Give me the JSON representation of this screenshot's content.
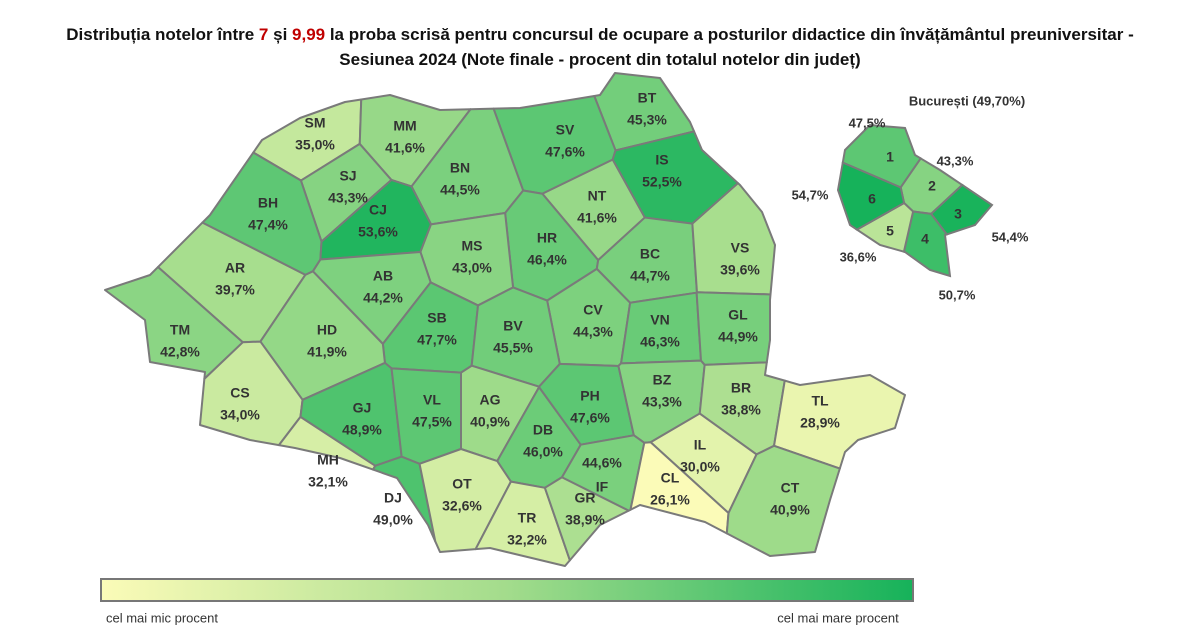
{
  "header": {
    "title_a": "Distribuția notelor între ",
    "title_n1": "7",
    "title_b": " și ",
    "title_n2": "9,99",
    "title_c": " la proba scrisă pentru concursul de ocupare a posturilor didactice din învățământul preuniversitar -",
    "title_line2": "Sesiunea 2024 (Note finale - procent din totalul notelor din județ)"
  },
  "counties": [
    {
      "code": "SM",
      "value": 35.0,
      "value_label": "35,0%"
    },
    {
      "code": "MM",
      "value": 41.6,
      "value_label": "41,6%"
    },
    {
      "code": "BT",
      "value": 45.3,
      "value_label": "45,3%"
    },
    {
      "code": "SV",
      "value": 47.6,
      "value_label": "47,6%"
    },
    {
      "code": "IS",
      "value": 52.5,
      "value_label": "52,5%"
    },
    {
      "code": "BN",
      "value": 44.5,
      "value_label": "44,5%"
    },
    {
      "code": "SJ",
      "value": 43.3,
      "value_label": "43,3%"
    },
    {
      "code": "BH",
      "value": 47.4,
      "value_label": "47,4%"
    },
    {
      "code": "CJ",
      "value": 53.6,
      "value_label": "53,6%"
    },
    {
      "code": "NT",
      "value": 41.6,
      "value_label": "41,6%"
    },
    {
      "code": "HR",
      "value": 46.4,
      "value_label": "46,4%"
    },
    {
      "code": "MS",
      "value": 43.0,
      "value_label": "43,0%"
    },
    {
      "code": "BC",
      "value": 44.7,
      "value_label": "44,7%"
    },
    {
      "code": "VS",
      "value": 39.6,
      "value_label": "39,6%"
    },
    {
      "code": "AR",
      "value": 39.7,
      "value_label": "39,7%"
    },
    {
      "code": "AB",
      "value": 44.2,
      "value_label": "44,2%"
    },
    {
      "code": "CV",
      "value": 44.3,
      "value_label": "44,3%"
    },
    {
      "code": "SB",
      "value": 47.7,
      "value_label": "47,7%"
    },
    {
      "code": "BV",
      "value": 45.5,
      "value_label": "45,5%"
    },
    {
      "code": "VN",
      "value": 46.3,
      "value_label": "46,3%"
    },
    {
      "code": "GL",
      "value": 44.9,
      "value_label": "44,9%"
    },
    {
      "code": "TM",
      "value": 42.8,
      "value_label": "42,8%"
    },
    {
      "code": "HD",
      "value": 41.9,
      "value_label": "41,9%"
    },
    {
      "code": "CS",
      "value": 34.0,
      "value_label": "34,0%"
    },
    {
      "code": "GJ",
      "value": 48.9,
      "value_label": "48,9%"
    },
    {
      "code": "VL",
      "value": 47.5,
      "value_label": "47,5%"
    },
    {
      "code": "AG",
      "value": 40.9,
      "value_label": "40,9%"
    },
    {
      "code": "DB",
      "value": 46.0,
      "value_label": "46,0%"
    },
    {
      "code": "PH",
      "value": 47.6,
      "value_label": "47,6%"
    },
    {
      "code": "BZ",
      "value": 43.3,
      "value_label": "43,3%"
    },
    {
      "code": "BR",
      "value": 38.8,
      "value_label": "38,8%"
    },
    {
      "code": "TL",
      "value": 28.9,
      "value_label": "28,9%"
    },
    {
      "code": "MH",
      "value": 32.1,
      "value_label": "32,1%"
    },
    {
      "code": "DJ",
      "value": 49.0,
      "value_label": "49,0%"
    },
    {
      "code": "OT",
      "value": 32.6,
      "value_label": "32,6%"
    },
    {
      "code": "TR",
      "value": 32.2,
      "value_label": "32,2%"
    },
    {
      "code": "GR",
      "value": 38.9,
      "value_label": "38,9%"
    },
    {
      "code": "IF",
      "value": 44.6,
      "value_label": "44,6%"
    },
    {
      "code": "IL",
      "value": 30.0,
      "value_label": "30,0%"
    },
    {
      "code": "CL",
      "value": 26.1,
      "value_label": "26,1%"
    },
    {
      "code": "CT",
      "value": 40.9,
      "value_label": "40,9%"
    }
  ],
  "bucharest": {
    "title": "București (49,70%)",
    "sectors": [
      {
        "sector": "1",
        "value": 47.5,
        "value_label": "47,5%"
      },
      {
        "sector": "2",
        "value": 43.3,
        "value_label": "43,3%"
      },
      {
        "sector": "3",
        "value": 54.4,
        "value_label": "54,4%"
      },
      {
        "sector": "4",
        "value": 50.7,
        "value_label": "50,7%"
      },
      {
        "sector": "5",
        "value": 36.6,
        "value_label": "36,6%"
      },
      {
        "sector": "6",
        "value": 54.7,
        "value_label": "54,7%"
      }
    ]
  },
  "legend": {
    "low": "cel mai mic procent",
    "high": "cel mai mare procent"
  }
}
